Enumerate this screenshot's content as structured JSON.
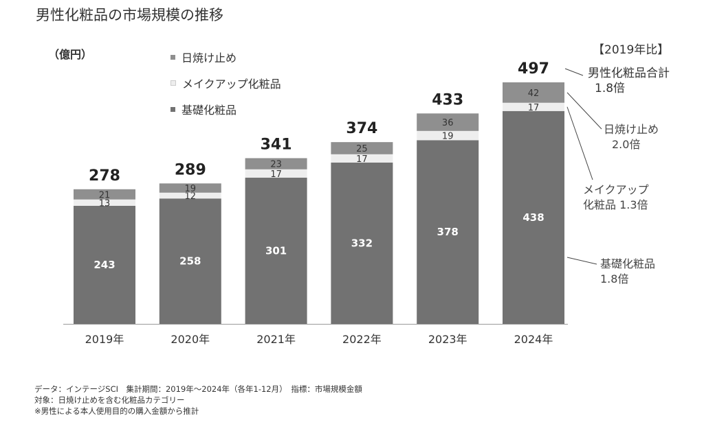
{
  "title": "男性化粧品の市場規模の推移",
  "unit_label": "（億円）",
  "comparison_label": "【2019年比】",
  "legend": [
    {
      "label": "日焼け止め",
      "color": "#8f8f8f"
    },
    {
      "label": "メイクアップ化粧品",
      "color": "#eeeeee"
    },
    {
      "label": "基礎化粧品",
      "color": "#727272"
    }
  ],
  "annotations": [
    {
      "line1": "男性化粧品合計",
      "line2": "1.8倍"
    },
    {
      "line1": "日焼け止め",
      "line2": "2.0倍"
    },
    {
      "line1": "メイクアップ",
      "line2": "化粧品 1.3倍"
    },
    {
      "line1": "基礎化粧品",
      "line2": "1.8倍"
    }
  ],
  "footnotes": [
    "データ：インテージSCI　集計期間：2019年〜2024年（各年1-12月）　指標：市場規模金額",
    "対象：日焼け止めを含む化粧品カテゴリー",
    "※男性による本人使用目的の購入金額から推計"
  ],
  "chart_data": {
    "type": "bar",
    "stacked": true,
    "categories": [
      "2019年",
      "2020年",
      "2021年",
      "2022年",
      "2023年",
      "2024年"
    ],
    "series": [
      {
        "name": "基礎化粧品",
        "values": [
          243,
          258,
          301,
          332,
          378,
          438
        ],
        "color": "#727272"
      },
      {
        "name": "メイクアップ化粧品",
        "values": [
          13,
          12,
          17,
          17,
          19,
          17
        ],
        "color": "#eeeeee"
      },
      {
        "name": "日焼け止め",
        "values": [
          21,
          19,
          23,
          25,
          36,
          42
        ],
        "color": "#8f8f8f"
      }
    ],
    "totals": [
      278,
      289,
      341,
      374,
      433,
      497
    ],
    "legend_position": "top-left",
    "grid": false,
    "ylim": [
      0,
      497
    ]
  }
}
